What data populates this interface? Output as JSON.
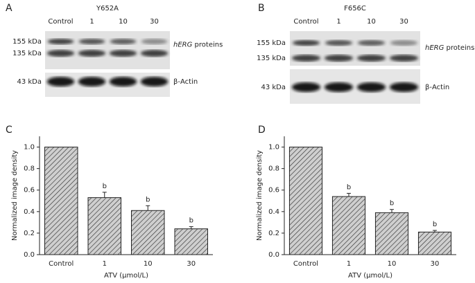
{
  "blots": [
    {
      "panel": "A",
      "title": "Y652A",
      "lanes": [
        "Control",
        "1",
        "10",
        "30"
      ],
      "markers": [
        "155 kDa",
        "135 kDa",
        "43 kDa"
      ],
      "gene": "hERG",
      "protein": "proteins",
      "actin": "β-Actin"
    },
    {
      "panel": "B",
      "title": "F656C",
      "lanes": [
        "Control",
        "1",
        "10",
        "30"
      ],
      "markers": [
        "155 kDa",
        "135 kDa",
        "43 kDa"
      ],
      "gene": "hERG",
      "protein": "proteins",
      "actin": "β-Actin"
    }
  ],
  "chart_data": [
    {
      "panel": "C",
      "type": "bar",
      "categories": [
        "Control",
        "1",
        "10",
        "30"
      ],
      "values": [
        1.0,
        0.53,
        0.41,
        0.24
      ],
      "errors": [
        null,
        0.05,
        0.045,
        0.02
      ],
      "annotations": [
        null,
        "b",
        "b",
        "b"
      ],
      "color": "#999999",
      "xlabel": "ATV (μmol/L)",
      "ylabel": "Normalized image density",
      "ylim": [
        0,
        1.1
      ],
      "yticks": [
        {
          "value": 0,
          "label": "0.0"
        },
        0.2,
        0.4,
        0.6,
        0.8,
        {
          "value": 1,
          "label": "1.0"
        }
      ]
    },
    {
      "panel": "D",
      "type": "bar",
      "categories": [
        "Control",
        "1",
        "10",
        "30"
      ],
      "values": [
        1.0,
        0.54,
        0.39,
        0.21
      ],
      "errors": [
        null,
        0.03,
        0.03,
        0.015
      ],
      "annotations": [
        null,
        "b",
        "b",
        "b"
      ],
      "color": "#999999",
      "xlabel": "ATV (μmol/L)",
      "ylabel": "Normalized image density",
      "ylim": [
        0,
        1.1
      ],
      "yticks": [
        {
          "value": 0,
          "label": "0.0"
        },
        0.2,
        0.4,
        0.6,
        0.8,
        {
          "value": 1,
          "label": "1.0"
        }
      ]
    }
  ]
}
